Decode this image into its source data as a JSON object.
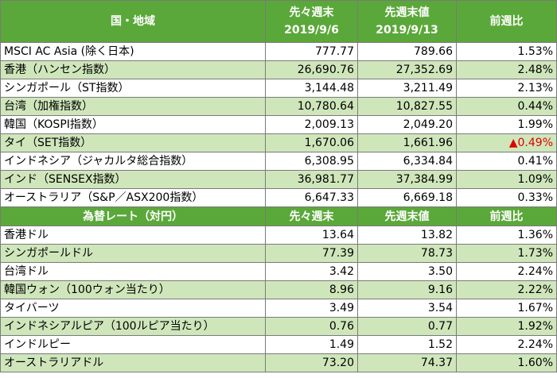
{
  "sections": [
    {
      "header": [
        "国・地域",
        [
          "先々週末",
          "2019/9/6"
        ],
        [
          "先週末値",
          "2019/9/13"
        ],
        "前週比"
      ],
      "rows": [
        [
          "MSCI AC Asia (除く日本)",
          "777.77",
          "789.66",
          "1.53%"
        ],
        [
          "香港（ハンセン指数）",
          "26,690.76",
          "27,352.69",
          "2.48%"
        ],
        [
          "シンガポール（ST指数）",
          "3,144.48",
          "3,211.49",
          "2.13%"
        ],
        [
          "台湾（加権指数）",
          "10,780.64",
          "10,827.55",
          "0.44%"
        ],
        [
          "韓国（KOSPI指数）",
          "2,009.13",
          "2,049.20",
          "1.99%"
        ],
        [
          "タイ（SET指数）",
          "1,670.06",
          "1,661.96",
          "▲0.49%"
        ],
        [
          "インドネシア（ジャカルタ総合指数）",
          "6,308.95",
          "6,334.84",
          "0.41%"
        ],
        [
          "インド（SENSEX指数）",
          "36,981.77",
          "37,384.99",
          "1.09%"
        ],
        [
          "オーストラリア（S&P／ASX200指数）",
          "6,647.33",
          "6,669.18",
          "0.33%"
        ]
      ]
    },
    {
      "header": [
        "為替レート（対円）",
        "先々週末",
        "先週末値",
        "前週比"
      ],
      "rows": [
        [
          "香港ドル",
          "13.64",
          "13.82",
          "1.36%"
        ],
        [
          "シンガポールドル",
          "77.39",
          "78.73",
          "1.73%"
        ],
        [
          "台湾ドル",
          "3.42",
          "3.50",
          "2.24%"
        ],
        [
          "韓国ウォン（100ウォン当たり）",
          "8.96",
          "9.16",
          "2.22%"
        ],
        [
          "タイバーツ",
          "3.49",
          "3.54",
          "1.67%"
        ],
        [
          "インドネシアルピア（100ルピア当たり）",
          "0.76",
          "0.77",
          "1.92%"
        ],
        [
          "インドルピー",
          "1.49",
          "1.52",
          "2.24%"
        ],
        [
          "オーストラリアドル",
          "73.20",
          "74.37",
          "1.60%"
        ]
      ]
    }
  ]
}
